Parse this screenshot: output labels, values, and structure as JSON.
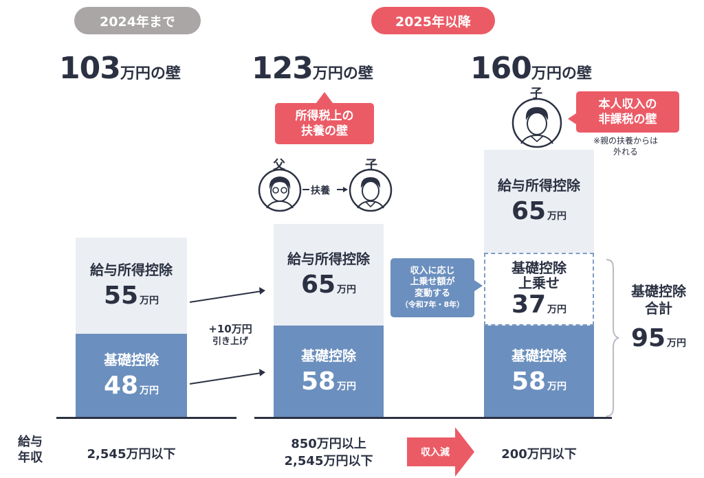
{
  "headers": {
    "before": "2024年まで",
    "after": "2025年以降",
    "colors": {
      "before": "#a9a6a5",
      "after": "#eb5b66"
    }
  },
  "walls": [
    {
      "num": "103",
      "unit": "万円の壁"
    },
    {
      "num": "123",
      "unit": "万円の壁"
    },
    {
      "num": "160",
      "unit": "万円の壁"
    }
  ],
  "col1": {
    "salary": {
      "label": "給与所得控除",
      "num": "55",
      "unit": "万円"
    },
    "basic": {
      "label": "基礎控除",
      "num": "48",
      "unit": "万円"
    }
  },
  "col2": {
    "callout_line1": "所得税上の",
    "callout_line2": "扶養の壁",
    "father": "父",
    "child": "子",
    "support": "扶養",
    "salary": {
      "label": "給与所得控除",
      "num": "65",
      "unit": "万円"
    },
    "basic": {
      "label": "基礎控除",
      "num": "58",
      "unit": "万円"
    }
  },
  "raise_note": {
    "line1": "+10万円",
    "line2": "引き上げ"
  },
  "variable_callout": {
    "line1": "収入に応じ",
    "line2": "上乗せ額が",
    "line3": "変動する",
    "line4": "（令和7年・8年）"
  },
  "col3": {
    "child": "子",
    "callout_line1": "本人収入の",
    "callout_line2": "非課税の壁",
    "note_line1": "※親の扶養からは",
    "note_line2": "外れる",
    "salary": {
      "label": "給与所得控除",
      "num": "65",
      "unit": "万円"
    },
    "extra": {
      "label_line1": "基礎控除",
      "label_line2": "上乗せ",
      "num": "37",
      "unit": "万円"
    },
    "basic": {
      "label": "基礎控除",
      "num": "58",
      "unit": "万円"
    }
  },
  "total": {
    "label_line1": "基礎控除",
    "label_line2": "合計",
    "num": "95",
    "unit": "万円"
  },
  "bottom": {
    "side_line1": "給与",
    "side_line2": "年収",
    "col1": "2,545万円以下",
    "col2_line1": "850万円以上",
    "col2_line2": "2,545万円以下",
    "arrow": "収入減",
    "col3": "200万円以下"
  }
}
